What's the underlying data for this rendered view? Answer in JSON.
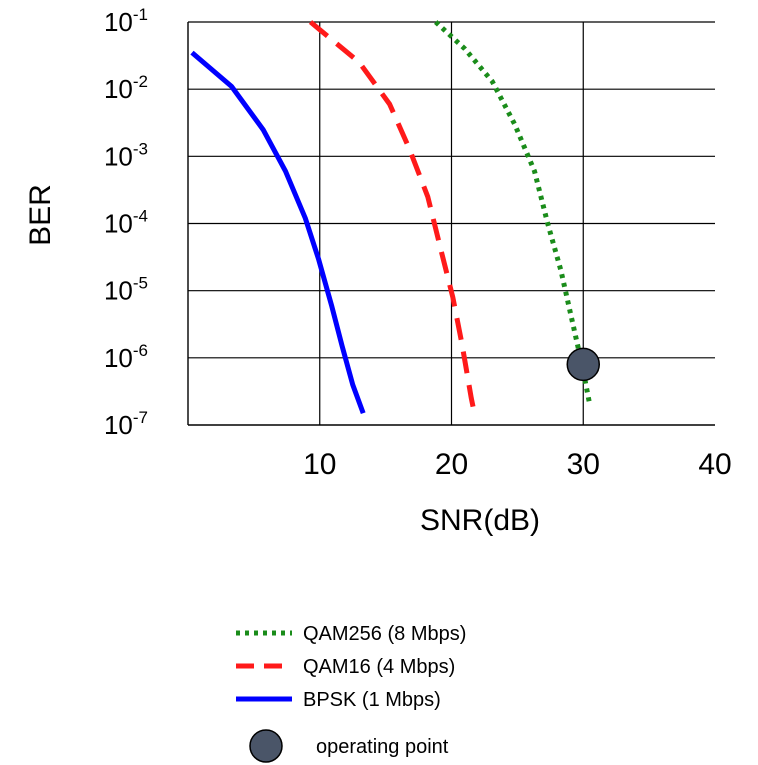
{
  "chart_data": {
    "type": "line",
    "title": "",
    "xlabel": "SNR(dB)",
    "ylabel": "BER",
    "x_scale": "linear",
    "y_scale": "log",
    "xlim": [
      0,
      40
    ],
    "ylim": [
      1e-07,
      0.1
    ],
    "x_ticks": [
      {
        "value": 10,
        "label": "10"
      },
      {
        "value": 20,
        "label": "20"
      },
      {
        "value": 30,
        "label": "30"
      },
      {
        "value": 40,
        "label": "40"
      }
    ],
    "y_ticks": [
      {
        "value": 0.1,
        "base": "10",
        "exp": "-1"
      },
      {
        "value": 0.01,
        "base": "10",
        "exp": "-2"
      },
      {
        "value": 0.001,
        "base": "10",
        "exp": "-3"
      },
      {
        "value": 0.0001,
        "base": "10",
        "exp": "-4"
      },
      {
        "value": 1e-05,
        "base": "10",
        "exp": "-5"
      },
      {
        "value": 1e-06,
        "base": "10",
        "exp": "-6"
      },
      {
        "value": 1e-07,
        "base": "10",
        "exp": "-7"
      }
    ],
    "grid": true,
    "legend_position": "bottom",
    "series": [
      {
        "name": "QAM256 (8 Mbps)",
        "color": "#1a8c1a",
        "style": "dotted",
        "points": [
          [
            18.8,
            0.1
          ],
          [
            21.0,
            0.04
          ],
          [
            23.1,
            0.013
          ],
          [
            24.8,
            0.003
          ],
          [
            26.3,
            0.0006
          ],
          [
            27.3,
            0.0001
          ],
          [
            28.3,
            2e-05
          ],
          [
            29.1,
            4e-06
          ],
          [
            29.9,
            8e-07
          ],
          [
            30.5,
            2e-07
          ]
        ]
      },
      {
        "name": "QAM16 (4 Mbps)",
        "color": "#ff1a1a",
        "style": "dashed",
        "points": [
          [
            9.3,
            0.1
          ],
          [
            13.0,
            0.025
          ],
          [
            15.3,
            0.006
          ],
          [
            16.8,
            0.0013
          ],
          [
            18.2,
            0.00025
          ],
          [
            19.2,
            4e-05
          ],
          [
            20.1,
            8e-06
          ],
          [
            20.8,
            1.6e-06
          ],
          [
            21.5,
            2.5e-07
          ],
          [
            21.8,
            1.3e-07
          ]
        ]
      },
      {
        "name": "BPSK (1 Mbps)",
        "color": "#0000ff",
        "style": "solid",
        "points": [
          [
            0.3,
            0.035
          ],
          [
            3.3,
            0.011
          ],
          [
            5.7,
            0.0025
          ],
          [
            7.4,
            0.0006
          ],
          [
            8.9,
            0.00012
          ],
          [
            9.9,
            3e-05
          ],
          [
            10.9,
            6e-06
          ],
          [
            11.7,
            1.5e-06
          ],
          [
            12.5,
            4e-07
          ],
          [
            13.3,
            1.5e-07
          ]
        ]
      }
    ],
    "annotations": [
      {
        "label": "operating point",
        "x": 30,
        "y": 8e-07,
        "color": "#4a5568"
      }
    ]
  }
}
